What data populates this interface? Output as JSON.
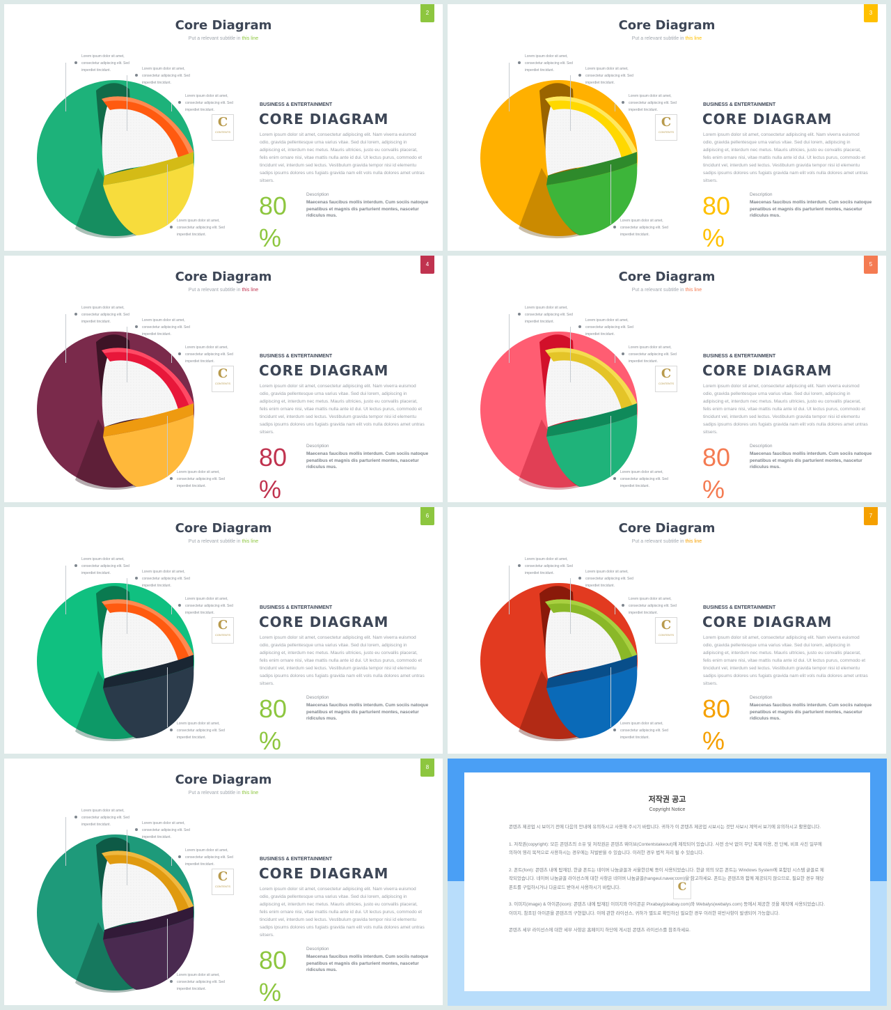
{
  "slides": [
    {
      "page": "2",
      "accent": "#8dc63f",
      "subtitle_accent": "#8dc63f",
      "outer": "#1db27a",
      "rimOuter": "#116b49",
      "topCap": "#ff5a10",
      "topCapLight": "#ff8a50",
      "bottomCap": "#f7dc3c",
      "bottomEdge": "#d4bb16",
      "bottomDark": "#0c4a32"
    },
    {
      "page": "3",
      "accent": "#ffc000",
      "subtitle_accent": "#ffc000",
      "outer": "#ffb000",
      "rimOuter": "#9a6400",
      "topCap": "#ffd800",
      "topCapLight": "#ffe860",
      "bottomCap": "#3db53a",
      "bottomEdge": "#2e8a2b",
      "bottomDark": "#6a4400"
    },
    {
      "page": "4",
      "accent": "#c0334f",
      "subtitle_accent": "#c0334f",
      "outer": "#7a2a4b",
      "rimOuter": "#3d1426",
      "topCap": "#e8173a",
      "topCapLight": "#ff4a65",
      "bottomCap": "#ffb83a",
      "bottomEdge": "#ee9a10",
      "bottomDark": "#2a0c18"
    },
    {
      "page": "5",
      "accent": "#f47b52",
      "subtitle_accent": "#f47b52",
      "outer": "#ff5d72",
      "rimOuter": "#d2102a",
      "topCap": "#e4c428",
      "topCapLight": "#f5dc50",
      "bottomCap": "#1fb37a",
      "bottomEdge": "#0f8a5a",
      "bottomDark": "#a80a20"
    },
    {
      "page": "6",
      "accent": "#8dc63f",
      "subtitle_accent": "#8dc63f",
      "outer": "#10c080",
      "rimOuter": "#0a7a50",
      "topCap": "#ff5a10",
      "topCapLight": "#ff8a50",
      "bottomCap": "#2a3a4a",
      "bottomEdge": "#1a2633",
      "bottomDark": "#08503a"
    },
    {
      "page": "7",
      "accent": "#f5a000",
      "subtitle_accent": "#f5a000",
      "outer": "#e23a20",
      "rimOuter": "#8a1a0a",
      "topCap": "#8ab828",
      "topCapLight": "#a8d040",
      "bottomCap": "#0a6ab8",
      "bottomEdge": "#084e8a",
      "bottomDark": "#5a0e04"
    },
    {
      "page": "8",
      "accent": "#8dc63f",
      "subtitle_accent": "#8dc63f",
      "outer": "#1e9a7a",
      "rimOuter": "#0e5a46",
      "topCap": "#e09a10",
      "topCapLight": "#f0b840",
      "bottomCap": "#4a2a50",
      "bottomEdge": "#321a38",
      "bottomDark": "#0a3a2c"
    }
  ],
  "text": {
    "title": "Core Diagram",
    "subtitle_prefix": "Put a relevant subtitle in ",
    "subtitle_accent_text": "this line",
    "category": "BUSINESS & ENTERTAINMENT",
    "heading": "CORE DIAGRAM",
    "body": "Lorem ipsum dolor sit amet, consectetur adipiscing elit. Nam viverra euismod odio, gravida pellentesque urna varius vitae. Sed dui lorem, adipiscing in adipiscing et, interdum nec metus. Mauris ultricies, justo eu convallis placerat, felis enim ornare nisi, vitae mattis nulla ante id dui. Ut lectus purus, commodo et tincidunt vel, interdum sed lectus. Vestibulum gravida tempor nisi id elementu sadips ipsums dolores uns fugiats gravida nam elit vols nulla dolores amet untras sitsers.",
    "big_number": "80",
    "percent": "%",
    "desc_label": "Description",
    "desc_text": "Maecenas faucibus mollis interdum. Cum sociis natoque penatibus et magnis dis parturient montes, nascetur ridiculus mus.",
    "callout": "Lorem ipsum dolor sit amet, consectetur adipiscing elit. Sed imperdiet tincidunt.",
    "logo_letter": "C",
    "logo_text": "CONTENTS"
  },
  "notice": {
    "title": "저작권 공고",
    "subtitle": "Copyright Notice",
    "intro": "콘텐츠 제공업 시 보이기 전에 다음의 안내에 유의하시고 사용해 주시기 바랍니다. 귀하가 이 콘텐츠 제공업 시보시는 것만 사보시 계약서 보기에 유의하시고 활용합니다.",
    "p1": "1. 저작권(copyright): 모든 콘텐츠의 소유 및 저작권은 콘텐츠 웨이브(Contentstakeout)에 제작되어 있습니다. 사전 승낙 없이 무단 복제 이용, 전 단체, 비표 사진 일부에 의하여 영리 목적으로 사용하시는 경우에는 처벌받을 수 있습니다. 이러한 경우 법적 처리 될 수 있습니다.",
    "p2": "2. 폰트(font): 콘텐츠 내에 탑재된, 한글 폰트는 네이버 나눔글꼴과 서울한강체 등이 사용되었습니다. 한글 외의 모든 폰트는 Windows System에 포함된 시스템 글꼴로 제작되었습니다. 네이버 나눔글꼴 라이선스에 대한 사항은 네이버 나눔글꼴(hangeul.naver.com)을 참고하세요. 폰트는 콘텐츠와 함께 제공되지 않으므로, 필요한 경우 해당 폰트를 구입하시거나 다운로드 받아서 사용하시기 바랍니다.",
    "p3": "3. 이미지(image) & 아이콘(icon): 콘텐츠 내에 탑재된 이미지와 아이콘은 Pixabay(pixabay.com)와 Webalys(webalys.com) 등에서 제공한 것을 제작에 사용되었습니다. 이미지, 참조된 아이콘을 콘텐츠의 구현합니다. 이에 관한 라이선스, 귀하가 별도로 확인하신 필요한 경우 이러한 위반사항이 발생되어 가능합니다.",
    "outro": "콘텐츠 세부 라이선스에 대한 세부 사항은 홈페이지 하단에 게시된 콘텐츠 라이선스를 참조하세요."
  }
}
